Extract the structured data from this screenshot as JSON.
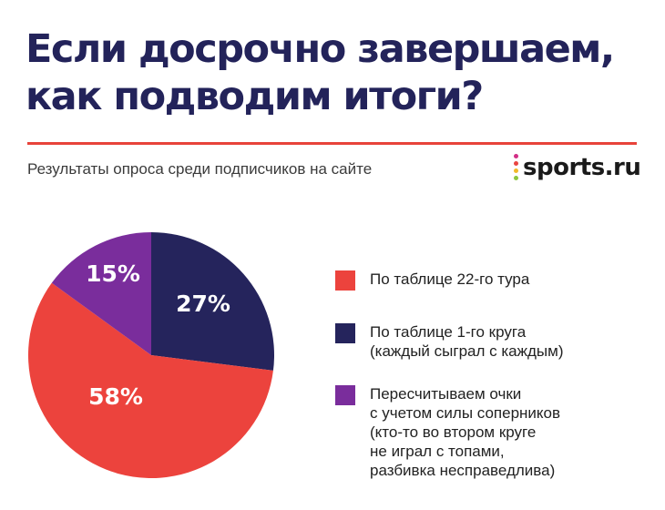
{
  "title_lines": [
    "Если досрочно завершаем,",
    "как подводим итоги?"
  ],
  "subtitle": "Результаты опроса среди подписчиков на сайте",
  "logo": {
    "text": "sports.ru",
    "dot_colors": [
      "#d22e86",
      "#e94542",
      "#f2b929",
      "#8dc63f"
    ]
  },
  "colors": {
    "title": "#23235a",
    "rule": "#e8433a"
  },
  "chart_data": {
    "type": "pie",
    "slices": [
      {
        "label": "По таблице 22-го тура",
        "value": 58,
        "value_label": "58%",
        "color": "#ec433d"
      },
      {
        "label": "По таблице 1-го круга (каждый сыграл с каждым)",
        "value": 27,
        "value_label": "27%",
        "color": "#25245c"
      },
      {
        "label": "Пересчитываем очки с учетом силы соперников (кто-то во втором круге не играл с топами, разбивка несправедлива)",
        "value": 15,
        "value_label": "15%",
        "color": "#7a2d9c"
      }
    ],
    "legend": [
      {
        "lines": [
          "По таблице 22-го тура"
        ]
      },
      {
        "lines": [
          "По таблице 1-го круга",
          "(каждый сыграл с каждым)"
        ]
      },
      {
        "lines": [
          "Пересчитываем очки",
          "с учетом силы соперников",
          "(кто-то во втором круге",
          "не играл с топами,",
          "разбивка несправедлива)"
        ]
      }
    ],
    "legend_position": "right"
  }
}
